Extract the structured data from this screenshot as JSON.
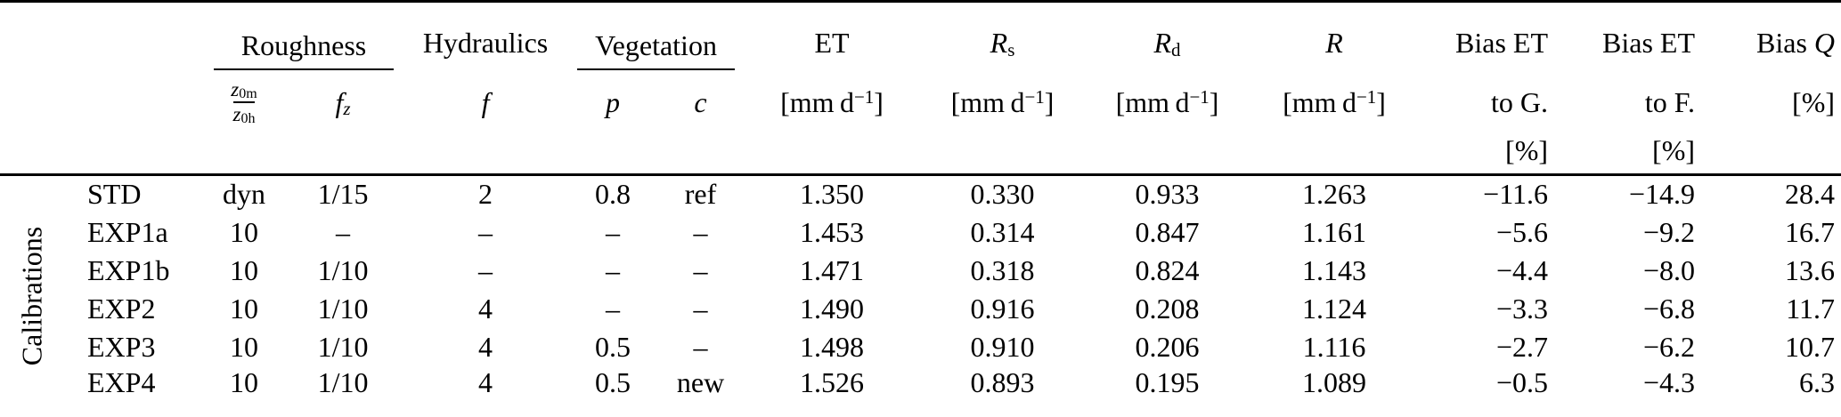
{
  "side_label": "Calibrations",
  "groups": {
    "roughness": "Roughness",
    "hydraulics": "Hydraulics",
    "vegetation": "Vegetation"
  },
  "header": {
    "et": "ET",
    "rs": {
      "base": "R",
      "sub": "s"
    },
    "rd": {
      "base": "R",
      "sub": "d"
    },
    "r": "R",
    "bias_et_g": "Bias ET",
    "bias_et_f": "Bias ET",
    "bias_q": {
      "pre": "Bias",
      "sym": "Q"
    },
    "zr": {
      "nb": "z",
      "ns": "0m",
      "db": "z",
      "ds": "0h"
    },
    "fz": {
      "base": "f",
      "sub": "z"
    },
    "f": "f",
    "p": "p",
    "c": "c",
    "unit_mmd": {
      "text": "[mm d",
      "sup": "−1",
      "close": "]"
    },
    "to_g": "to G.",
    "to_f": "to F.",
    "pct": "[%]"
  },
  "rows": [
    {
      "name": "STD",
      "z": "dyn",
      "fz": "1/15",
      "f": "2",
      "p": "0.8",
      "c": "ref",
      "et": "1.350",
      "rs": "0.330",
      "rd": "0.933",
      "r": "1.263",
      "bias_g": "−11.6",
      "bias_f": "−14.9",
      "bias_q": "28.4"
    },
    {
      "name": "EXP1a",
      "z": "10",
      "fz": "–",
      "f": "–",
      "p": "–",
      "c": "–",
      "et": "1.453",
      "rs": "0.314",
      "rd": "0.847",
      "r": "1.161",
      "bias_g": "−5.6",
      "bias_f": "−9.2",
      "bias_q": "16.7"
    },
    {
      "name": "EXP1b",
      "z": "10",
      "fz": "1/10",
      "f": "–",
      "p": "–",
      "c": "–",
      "et": "1.471",
      "rs": "0.318",
      "rd": "0.824",
      "r": "1.143",
      "bias_g": "−4.4",
      "bias_f": "−8.0",
      "bias_q": "13.6"
    },
    {
      "name": "EXP2",
      "z": "10",
      "fz": "1/10",
      "f": "4",
      "p": "–",
      "c": "–",
      "et": "1.490",
      "rs": "0.916",
      "rd": "0.208",
      "r": "1.124",
      "bias_g": "−3.3",
      "bias_f": "−6.8",
      "bias_q": "11.7"
    },
    {
      "name": "EXP3",
      "z": "10",
      "fz": "1/10",
      "f": "4",
      "p": "0.5",
      "c": "–",
      "et": "1.498",
      "rs": "0.910",
      "rd": "0.206",
      "r": "1.116",
      "bias_g": "−2.7",
      "bias_f": "−6.2",
      "bias_q": "10.7"
    },
    {
      "name": "EXP4",
      "z": "10",
      "fz": "1/10",
      "f": "4",
      "p": "0.5",
      "c": "new",
      "et": "1.526",
      "rs": "0.893",
      "rd": "0.195",
      "r": "1.089",
      "bias_g": "−0.5",
      "bias_f": "−4.3",
      "bias_q": "6.3"
    }
  ]
}
